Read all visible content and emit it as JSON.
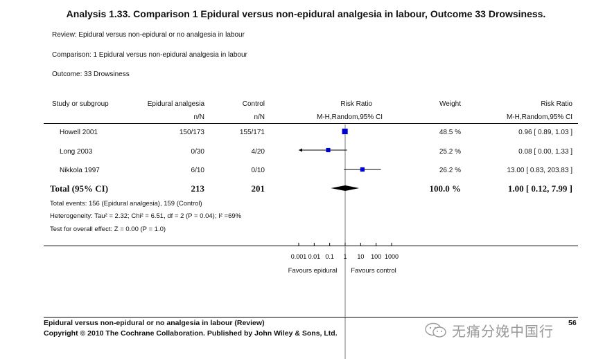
{
  "title": "Analysis 1.33.   Comparison 1 Epidural versus non-epidural analgesia in labour, Outcome 33 Drowsiness.",
  "meta": {
    "review": "Review:   Epidural versus non-epidural or no analgesia in labour",
    "comparison": "Comparison:   1 Epidural versus non-epidural analgesia in labour",
    "outcome": "Outcome:   33 Drowsiness"
  },
  "headers": {
    "study": "Study or subgroup",
    "group1": "Epidural analgesia",
    "group1_sub": "n/N",
    "group2": "Control",
    "group2_sub": "n/N",
    "rr": "Risk Ratio",
    "rr_sub": "M-H,Random,95% CI",
    "weight": "Weight",
    "rr2": "Risk Ratio",
    "rr2_sub": "M-H,Random,95% CI"
  },
  "chart_data": {
    "type": "forest",
    "scale": "log",
    "xlim": [
      0.001,
      1000
    ],
    "ticks": [
      "0.001",
      "0.01",
      "0.1",
      "1",
      "10",
      "100",
      "1000"
    ],
    "tick_values": [
      0.001,
      0.01,
      0.1,
      1,
      10,
      100,
      1000
    ],
    "favours_left": "Favours epidural",
    "favours_right": "Favours control",
    "studies": [
      {
        "name": "Howell 2001",
        "epidural": "150/173",
        "control": "155/171",
        "weight": "48.5 %",
        "ci_text": "0.96 [ 0.89, 1.03 ]",
        "rr": 0.96,
        "lo": 0.89,
        "hi": 1.03,
        "lo_arrow": false,
        "hi_arrow": false
      },
      {
        "name": "Long 2003",
        "epidural": "0/30",
        "control": "4/20",
        "weight": "25.2 %",
        "ci_text": "0.08 [ 0.00, 1.33 ]",
        "rr": 0.08,
        "lo": 0.0,
        "hi": 1.33,
        "lo_arrow": true,
        "hi_arrow": false
      },
      {
        "name": "Nikkola 1997",
        "epidural": "6/10",
        "control": "0/10",
        "weight": "26.2 %",
        "ci_text": "13.00 [ 0.83, 203.83 ]",
        "rr": 13.0,
        "lo": 0.83,
        "hi": 203.83,
        "lo_arrow": false,
        "hi_arrow": false
      }
    ],
    "total": {
      "label": "Total (95% CI)",
      "epidural": "213",
      "control": "201",
      "weight": "100.0 %",
      "ci_text": "1.00 [ 0.12, 7.99 ]",
      "rr": 1.0,
      "lo": 0.12,
      "hi": 7.99
    }
  },
  "stats": {
    "events": "Total events: 156 (Epidural analgesia), 159 (Control)",
    "heterogeneity": "Heterogeneity: Tau² = 2.32; Chi² = 6.51, df = 2 (P = 0.04); I² =69%",
    "overall": "Test for overall effect: Z = 0.00 (P = 1.0)"
  },
  "footer": {
    "line1": "Epidural versus non-epidural or no analgesia in labour (Review)",
    "line2": "Copyright © 2010 The Cochrane Collaboration. Published by John Wiley & Sons, Ltd.",
    "page": "56"
  },
  "watermark": "无痛分娩中国行",
  "colors": {
    "marker": "#0000cc",
    "diamond": "#000000"
  }
}
